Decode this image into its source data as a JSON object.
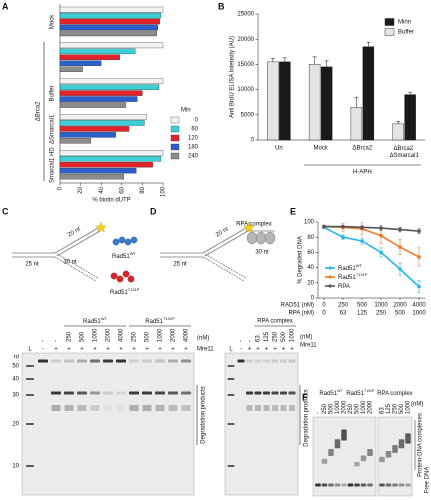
{
  "panels": [
    "A",
    "B",
    "C",
    "D",
    "E",
    "F"
  ],
  "chart_data": [
    {
      "type": "hbar",
      "categories": [
        "Mock",
        null,
        "Buffer",
        "ΔSmarcal1",
        "Smarcal1 HD"
      ],
      "group_label": "ΔBrca2",
      "xlabel": "% biotin dUTP",
      "xlim": [
        0,
        100
      ],
      "xticks": [
        0,
        20,
        40,
        60,
        80,
        100
      ],
      "legend_title": "Min",
      "legend": "lower right",
      "series": [
        {
          "name": "0",
          "color": "#f2f2f2",
          "values": [
            100,
            100,
            100,
            84,
            100
          ]
        },
        {
          "name": "60",
          "color": "#3ccfd6",
          "values": [
            98,
            73,
            96,
            82,
            98
          ]
        },
        {
          "name": "120",
          "color": "#e3232b",
          "values": [
            97,
            58,
            80,
            67,
            90
          ]
        },
        {
          "name": "180",
          "color": "#2b5fc9",
          "values": [
            95,
            40,
            75,
            54,
            74
          ]
        },
        {
          "name": "240",
          "color": "#8c8c8c",
          "values": [
            94,
            22,
            64,
            30,
            62
          ]
        }
      ]
    },
    {
      "type": "bar",
      "categories": [
        "Un",
        "Mock",
        "ΔBrca2",
        "ΔBrca2 ΔSmarcal1"
      ],
      "xlabel": "H-APH",
      "ylabel": "Anti BrdU ELISA Intensity (AU)",
      "ylim": [
        0,
        25000
      ],
      "yticks": [
        0,
        5000,
        10000,
        15000,
        20000,
        25000
      ],
      "legend": "upper right",
      "series": [
        {
          "name": "Mirin",
          "color": "#1a1a1a",
          "values": [
            15500,
            14500,
            18500,
            9000
          ],
          "errors": [
            800,
            1200,
            900,
            500
          ]
        },
        {
          "name": "Buffer",
          "color": "#e4e4e4",
          "values": [
            15500,
            15000,
            6500,
            3200
          ],
          "errors": [
            700,
            1500,
            2000,
            500
          ]
        }
      ]
    },
    {
      "type": "line",
      "ylabel": "% Degraded DNA",
      "ylim": [
        0,
        100
      ],
      "yticks": [
        0,
        20,
        40,
        60,
        80,
        100
      ],
      "x_label": "RAD51 (nM)",
      "categories": [
        "0",
        "250",
        "500",
        "1000",
        "2000",
        "4000"
      ],
      "x2_label": "RPA (nM)",
      "categories2": [
        "0",
        "63",
        "125",
        "250",
        "500",
        "1000"
      ],
      "legend": "lower left",
      "series": [
        {
          "name": "Rad51",
          "sup": "WT",
          "color": "#29b6e8",
          "values": [
            93,
            80,
            75,
            60,
            38,
            15
          ],
          "errors": [
            2,
            3,
            4,
            6,
            8,
            8
          ]
        },
        {
          "name": "Rad51",
          "sup": "T131P",
          "color": "#f07a2a",
          "values": [
            94,
            93,
            91,
            82,
            67,
            54
          ],
          "errors": [
            2,
            5,
            8,
            10,
            10,
            12
          ]
        },
        {
          "name": "RPA",
          "color": "#555555",
          "values": [
            94,
            94,
            93,
            92,
            90,
            88
          ],
          "errors": [
            1,
            1,
            2,
            3,
            3,
            3
          ]
        }
      ]
    }
  ],
  "diagram_c": {
    "labels": [
      "20 nt",
      "30 nt",
      "25 nt"
    ],
    "protein_wt": {
      "name": "Rad51",
      "sup": "WT"
    },
    "protein_mut": {
      "name": "Rad51",
      "sup": "T131P"
    }
  },
  "diagram_d": {
    "labels": [
      "20 nt",
      "30 nt",
      "25 nt"
    ],
    "protein": "RPA complex"
  },
  "gel_c": {
    "groups": [
      {
        "name": "Rad51",
        "sup": "WT"
      },
      {
        "name": "Rad51",
        "sup": "T131P"
      }
    ],
    "unit": "(nM)",
    "ladder_lane": "L",
    "concentrations": [
      "-",
      "-",
      "250",
      "500",
      "1000",
      "2000",
      "4000",
      "250",
      "500",
      "1000",
      "2000",
      "4000"
    ],
    "mre11_label": "Mre11",
    "mre11": [
      "-",
      "+",
      "+",
      "+",
      "+",
      "+",
      "+",
      "+",
      "+",
      "+",
      "+",
      "+"
    ],
    "ladder_unit": "nt",
    "ladder": [
      50,
      40,
      30,
      20,
      10
    ],
    "side_label": "Degradation products"
  },
  "gel_d": {
    "title": "RPA complex",
    "unit": "(nM)",
    "ladder_lane": "L",
    "concentrations": [
      "-",
      "-",
      "63",
      "125",
      "250",
      "500",
      "1000"
    ],
    "mre11_label": "Mre11",
    "mre11": [
      "-",
      "+",
      "+",
      "+",
      "+",
      "+",
      "+"
    ],
    "side_label": "Degradation products"
  },
  "gel_f": {
    "groups": [
      {
        "name": "Rad51",
        "sup": "WT",
        "concentrations": [
          "-",
          "250",
          "500",
          "1000",
          "2000"
        ]
      },
      {
        "name": "Rad51",
        "sup": "T131P",
        "concentrations": [
          "250",
          "500",
          "1000",
          "2000"
        ]
      },
      {
        "name": "RPA complex",
        "concentrations": [
          "63",
          "125",
          "250",
          "500",
          "1000"
        ]
      }
    ],
    "unit": "(nM)",
    "complex_label": "Protein-DNA complexes",
    "free_label": "Free DNA"
  }
}
